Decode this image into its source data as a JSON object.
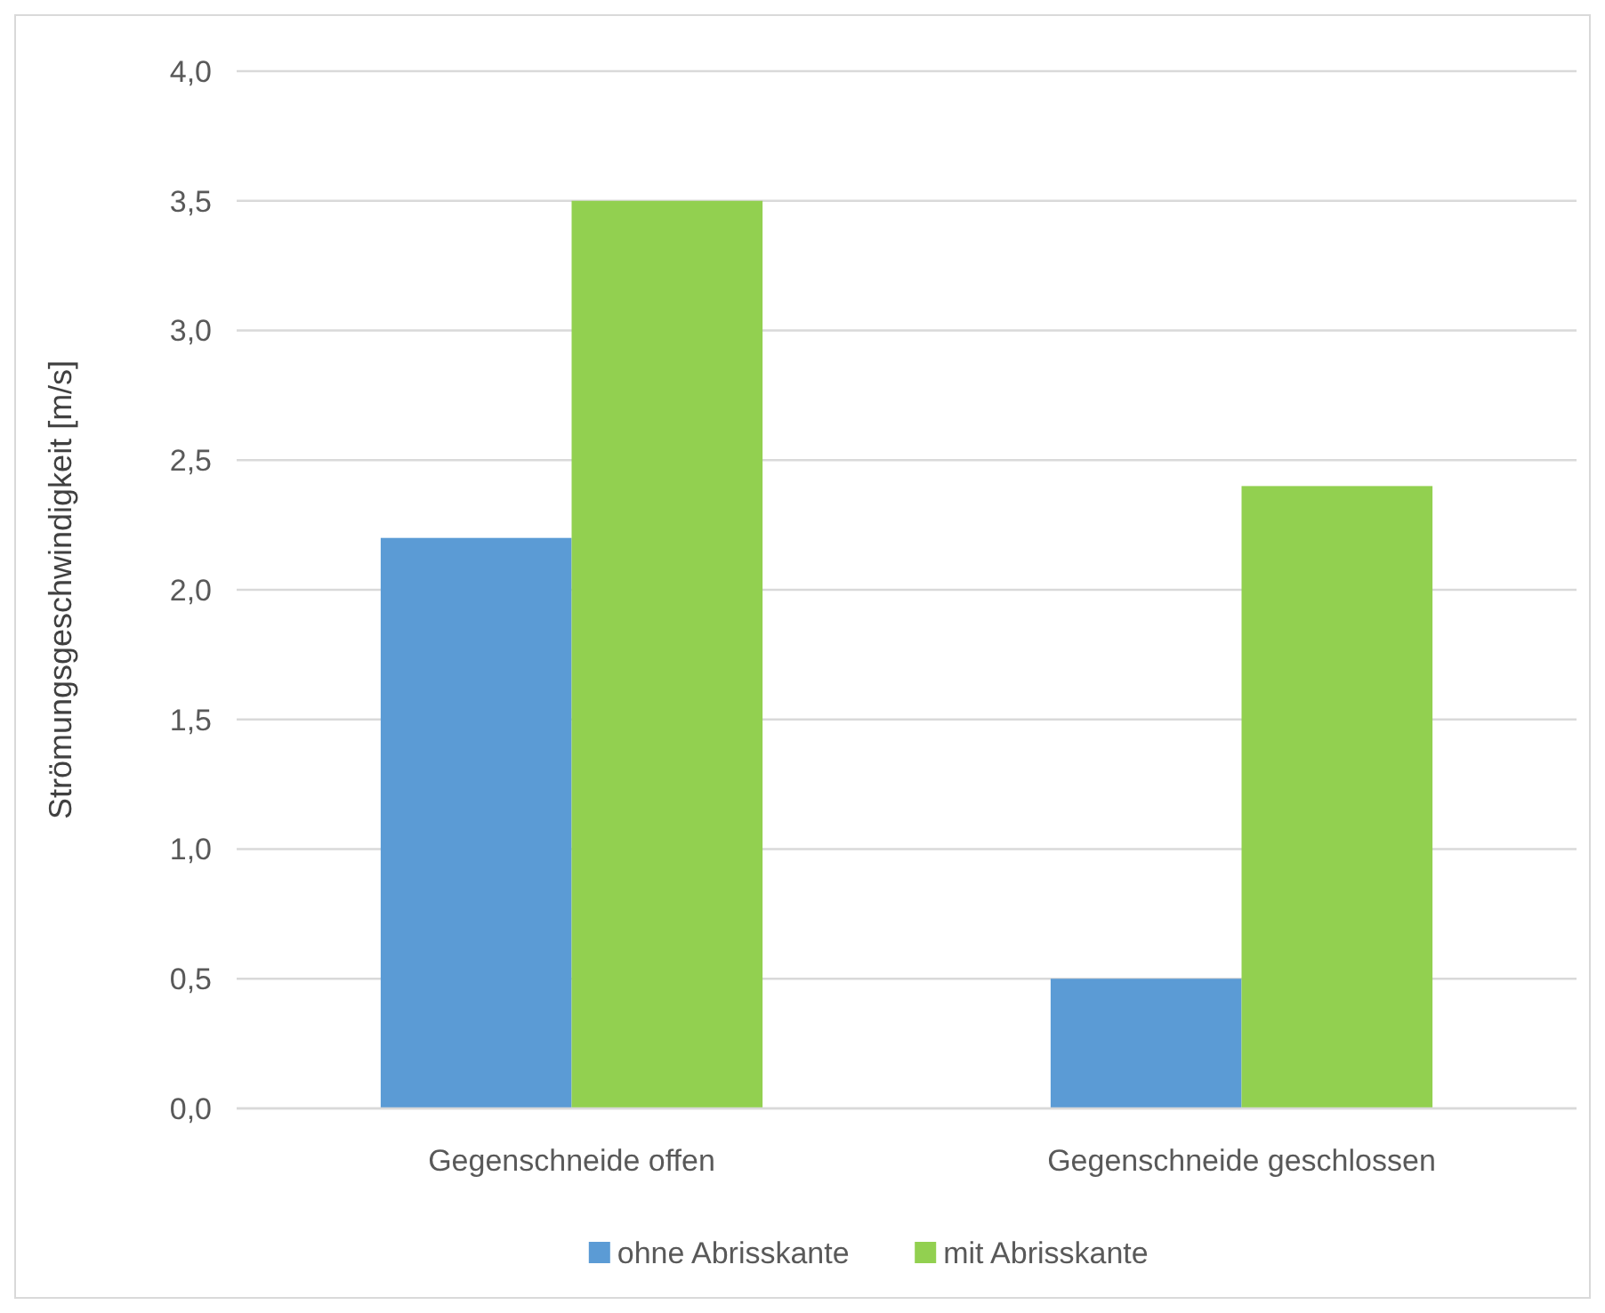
{
  "chart_data": {
    "type": "bar",
    "ylabel": "Strömungsgeschwindigkeit [m/s]",
    "categories": [
      "Gegenschneide offen",
      "Gegenschneide geschlossen"
    ],
    "series": [
      {
        "name": "ohne Abrisskante",
        "color": "#5b9bd5",
        "values": [
          2.2,
          0.5
        ]
      },
      {
        "name": "mit Abrisskante",
        "color": "#92d050",
        "values": [
          3.5,
          2.4
        ]
      }
    ],
    "ylim": [
      0,
      4
    ],
    "yticks": [
      {
        "value": 0,
        "label": "0,0"
      },
      {
        "value": 0.5,
        "label": "0,5"
      },
      {
        "value": 1,
        "label": "1,0"
      },
      {
        "value": 1.5,
        "label": "1,5"
      },
      {
        "value": 2,
        "label": "2,0"
      },
      {
        "value": 2.5,
        "label": "2,5"
      },
      {
        "value": 3,
        "label": "3,0"
      },
      {
        "value": 3.5,
        "label": "3,5"
      },
      {
        "value": 4,
        "label": "4,0"
      }
    ],
    "grid": "y",
    "legend": "bottom"
  }
}
